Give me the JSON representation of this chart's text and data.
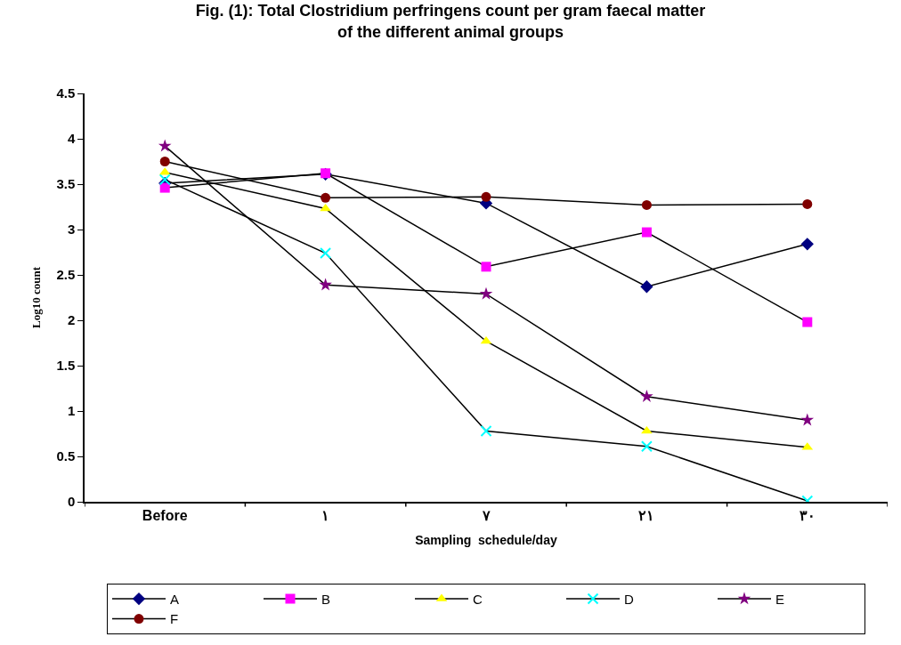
{
  "chart_data": {
    "type": "line",
    "title": "Fig. (1): Total Clostridium perfringens count per gram faecal matter\nof the different animal groups",
    "xlabel": "Sampling  schedule/day",
    "ylabel": "Log10 count",
    "categories": [
      "Before",
      "١",
      "٧",
      "٢١",
      "٣٠"
    ],
    "series": [
      {
        "name": "A",
        "color": "#000080",
        "marker": "diamond",
        "values": [
          3.51,
          3.61,
          3.29,
          2.37,
          2.84
        ]
      },
      {
        "name": "B",
        "color": "#ff00ff",
        "marker": "square",
        "values": [
          3.46,
          3.62,
          2.59,
          2.97,
          1.98
        ]
      },
      {
        "name": "C",
        "color": "#ffff00",
        "marker": "triangle",
        "values": [
          3.63,
          3.23,
          1.77,
          0.78,
          0.6
        ]
      },
      {
        "name": "D",
        "color": "#00ffff",
        "marker": "cross",
        "values": [
          3.55,
          2.74,
          0.78,
          0.61,
          0.01
        ]
      },
      {
        "name": "E",
        "color": "#800080",
        "marker": "star",
        "values": [
          3.92,
          2.39,
          2.29,
          1.16,
          0.9
        ]
      },
      {
        "name": "F",
        "color": "#800000",
        "marker": "circle",
        "values": [
          3.75,
          3.35,
          3.36,
          3.27,
          3.28
        ]
      }
    ],
    "ylim": [
      0,
      4.5
    ],
    "yticks": [
      0,
      0.5,
      1,
      1.5,
      2,
      2.5,
      3,
      3.5,
      4,
      4.5
    ],
    "legend": "bottom",
    "line_style": "solid"
  }
}
